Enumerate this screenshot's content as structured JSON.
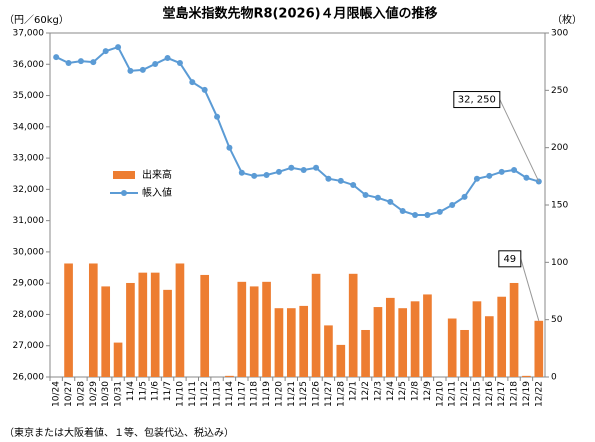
{
  "chart_data": {
    "type": "bar_line",
    "title": "堂島米指数先物R8(2026)４月限帳入値の推移",
    "y_label": "（円／60kg）",
    "y2_label": "（枚）",
    "footnote": "（東京または大阪着値、１等、包装代込、税込み）",
    "categories": [
      "10/24",
      "10/27",
      "10/28",
      "10/29",
      "10/30",
      "10/31",
      "11/4",
      "11/5",
      "11/6",
      "11/7",
      "11/10",
      "11/11",
      "11/12",
      "11/13",
      "11/14",
      "11/17",
      "11/18",
      "11/19",
      "11/20",
      "11/21",
      "11/25",
      "11/26",
      "11/27",
      "11/28",
      "12/1",
      "12/2",
      "12/3",
      "12/4",
      "12/5",
      "12/8",
      "12/9",
      "12/10",
      "12/11",
      "12/12",
      "12/15",
      "12/16",
      "12/17",
      "12/18",
      "12/19",
      "12/22"
    ],
    "series": [
      {
        "name": "出来高",
        "type": "bar",
        "axis": "y2",
        "color": "#ed7d31",
        "values": [
          0,
          99,
          0,
          99,
          79,
          30,
          82,
          91,
          91,
          76,
          99,
          0,
          89,
          0,
          1,
          83,
          79,
          83,
          60,
          60,
          62,
          90,
          45,
          28,
          90,
          41,
          61,
          69,
          60,
          66,
          72,
          0,
          51,
          41,
          66,
          53,
          70,
          82,
          1,
          49
        ],
        "value_labels": [
          null,
          null,
          null,
          null,
          null,
          null,
          null,
          null,
          null,
          null,
          null,
          null,
          null,
          null,
          null,
          null,
          null,
          null,
          null,
          null,
          null,
          null,
          null,
          null,
          null,
          null,
          null,
          null,
          null,
          null,
          null,
          null,
          null,
          null,
          null,
          null,
          null,
          null,
          null,
          "49"
        ]
      },
      {
        "name": "帳入値",
        "type": "line",
        "axis": "y",
        "color": "#5b9bd5",
        "values": [
          36230,
          36040,
          36100,
          36070,
          36420,
          36550,
          35790,
          35820,
          36010,
          36200,
          36040,
          35430,
          35180,
          34320,
          33330,
          32530,
          32430,
          32460,
          32560,
          32690,
          32620,
          32690,
          32340,
          32270,
          32140,
          31820,
          31730,
          31600,
          31310,
          31180,
          31180,
          31280,
          31500,
          31760,
          32340,
          32430,
          32560,
          32620,
          32370,
          32250
        ],
        "value_labels": [
          null,
          null,
          null,
          null,
          null,
          null,
          null,
          null,
          null,
          null,
          null,
          null,
          null,
          null,
          null,
          null,
          null,
          null,
          null,
          null,
          null,
          null,
          null,
          null,
          null,
          null,
          null,
          null,
          null,
          null,
          null,
          null,
          null,
          null,
          null,
          null,
          null,
          null,
          null,
          "32, 250"
        ]
      }
    ],
    "ylim": [
      26000,
      37000
    ],
    "yticks": [
      {
        "value": 26000,
        "label": "26,000"
      },
      {
        "value": 27000,
        "label": "27,000"
      },
      {
        "value": 28000,
        "label": "28,000"
      },
      {
        "value": 29000,
        "label": "29,000"
      },
      {
        "value": 30000,
        "label": "30,000"
      },
      {
        "value": 31000,
        "label": "31,000"
      },
      {
        "value": 32000,
        "label": "32,000"
      },
      {
        "value": 33000,
        "label": "33,000"
      },
      {
        "value": 34000,
        "label": "34,000"
      },
      {
        "value": 35000,
        "label": "35,000"
      },
      {
        "value": 36000,
        "label": "36,000"
      },
      {
        "value": 37000,
        "label": "37,000"
      }
    ],
    "y2lim": [
      0,
      300
    ],
    "y2ticks": [
      0,
      50,
      100,
      150,
      200,
      250,
      300
    ],
    "grid": false
  }
}
